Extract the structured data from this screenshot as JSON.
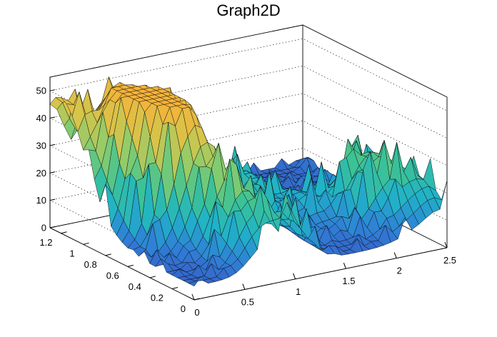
{
  "chart_data": {
    "type": "surface",
    "title": "Graph2D",
    "xlabel": "",
    "ylabel": "",
    "zlabel": "",
    "xlim": [
      0,
      2.5
    ],
    "ylim": [
      0,
      1.3
    ],
    "zlim": [
      0,
      55
    ],
    "x_ticks": [
      "0",
      "0.5",
      "1",
      "1.5",
      "2",
      "2.5"
    ],
    "y_ticks": [
      "0",
      "0.2",
      "0.4",
      "0.6",
      "0.8",
      "1",
      "1.2"
    ],
    "z_ticks": [
      "0",
      "10",
      "20",
      "30",
      "40",
      "50"
    ],
    "x_tick_values": [
      0,
      0.5,
      1,
      1.5,
      2,
      2.5
    ],
    "y_tick_values": [
      0,
      0.2,
      0.4,
      0.6,
      0.8,
      1.0,
      1.2
    ],
    "z_tick_values": [
      0,
      10,
      20,
      30,
      40,
      50
    ],
    "grid": true,
    "palette": "viridis-like (blue to yellow)",
    "colors": [
      "#3b4cc0",
      "#2f7fd6",
      "#20b2c8",
      "#3cc296",
      "#8ccc6c",
      "#d7c44a",
      "#f4b33a"
    ],
    "peaks": [
      {
        "x": 0.45,
        "y": 0.7,
        "z": 53
      },
      {
        "x": 0.45,
        "y": 1.2,
        "z": 34
      },
      {
        "x": 0.3,
        "y": 0.9,
        "z": 40
      },
      {
        "x": 0.7,
        "y": 0.9,
        "z": 36
      },
      {
        "x": 0.0,
        "y": 1.1,
        "z": 24
      },
      {
        "x": 0.0,
        "y": 1.3,
        "z": 29
      },
      {
        "x": 0.65,
        "y": 0.5,
        "z": 30
      },
      {
        "x": 0.7,
        "y": 0.2,
        "z": 20
      },
      {
        "x": 1.0,
        "y": 0.05,
        "z": 14
      },
      {
        "x": 1.15,
        "y": 0.5,
        "z": 18
      },
      {
        "x": 1.35,
        "y": 0.8,
        "z": 16
      },
      {
        "x": 1.6,
        "y": 0.5,
        "z": 11
      },
      {
        "x": 2.0,
        "y": 0.4,
        "z": 14
      },
      {
        "x": 2.2,
        "y": 0.3,
        "z": 16
      },
      {
        "x": 2.45,
        "y": 0.15,
        "z": 14
      },
      {
        "x": 2.3,
        "y": 0.6,
        "z": 10
      }
    ]
  }
}
